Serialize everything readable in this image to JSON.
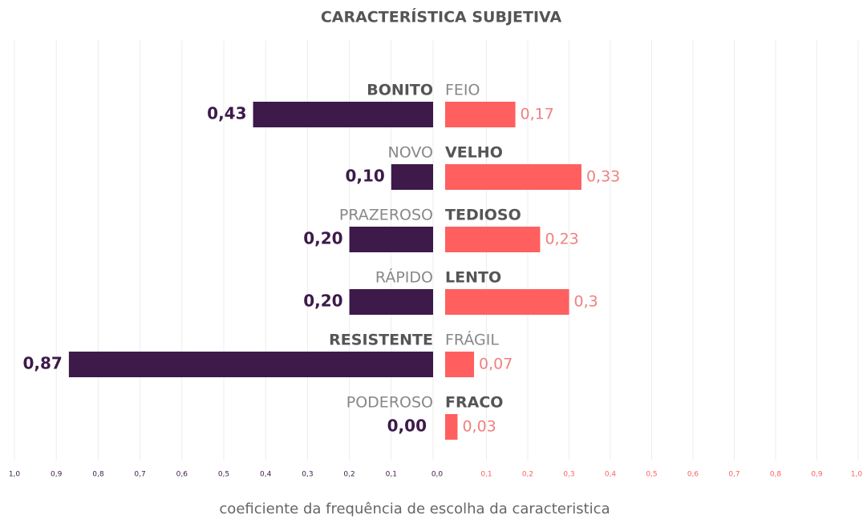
{
  "chart_data": {
    "type": "diverging_bar",
    "title": "CARACTERÍSTICA SUBJETIVA",
    "xlabel": "coeficiente da frequência de escolha da caracteristica",
    "xlim": [
      0,
      1
    ],
    "grid": true,
    "left": {
      "labels": [
        "BONITO",
        "NOVO",
        "PRAZEROSO",
        "RÁPIDO",
        "RESISTENTE",
        "PODEROSO"
      ],
      "values": [
        0.43,
        0.1,
        0.2,
        0.2,
        0.87,
        0.0
      ],
      "value_labels": [
        "0,43",
        "0,10",
        "0,20",
        "0,20",
        "0,87",
        "0,00"
      ],
      "color": "#3d1a4a",
      "xticks": [
        {
          "value": 1,
          "label": "1,0"
        },
        {
          "value": 0.9,
          "label": "0,9"
        },
        {
          "value": 0.8,
          "label": "0,8"
        },
        {
          "value": 0.7,
          "label": "0,7"
        },
        {
          "value": 0.6,
          "label": "0,6"
        },
        {
          "value": 0.5,
          "label": "0,5"
        },
        {
          "value": 0.4,
          "label": "0,4"
        },
        {
          "value": 0.3,
          "label": "0,3"
        },
        {
          "value": 0.2,
          "label": "0,2"
        },
        {
          "value": 0.1,
          "label": "0,1"
        },
        {
          "value": 0,
          "label": "0,0"
        }
      ]
    },
    "right": {
      "labels": [
        "FEIO",
        "VELHO",
        "TEDIOSO",
        "LENTO",
        "FRÁGIL",
        "FRACO"
      ],
      "values": [
        0.17,
        0.33,
        0.23,
        0.3,
        0.07,
        0.03
      ],
      "value_labels": [
        "0,17",
        "0,33",
        "0,23",
        "0,3",
        "0,07",
        "0,03"
      ],
      "color": "#ff5f5f",
      "xticks": [
        {
          "value": 0.1,
          "label": "0,1"
        },
        {
          "value": 0.2,
          "label": "0,2"
        },
        {
          "value": 0.3,
          "label": "0,3"
        },
        {
          "value": 0.4,
          "label": "0,4"
        },
        {
          "value": 0.5,
          "label": "0,5"
        },
        {
          "value": 0.6,
          "label": "0,6"
        },
        {
          "value": 0.7,
          "label": "0,7"
        },
        {
          "value": 0.8,
          "label": "0,8"
        },
        {
          "value": 0.9,
          "label": "0,9"
        },
        {
          "value": 1,
          "label": "1,0"
        }
      ]
    }
  }
}
